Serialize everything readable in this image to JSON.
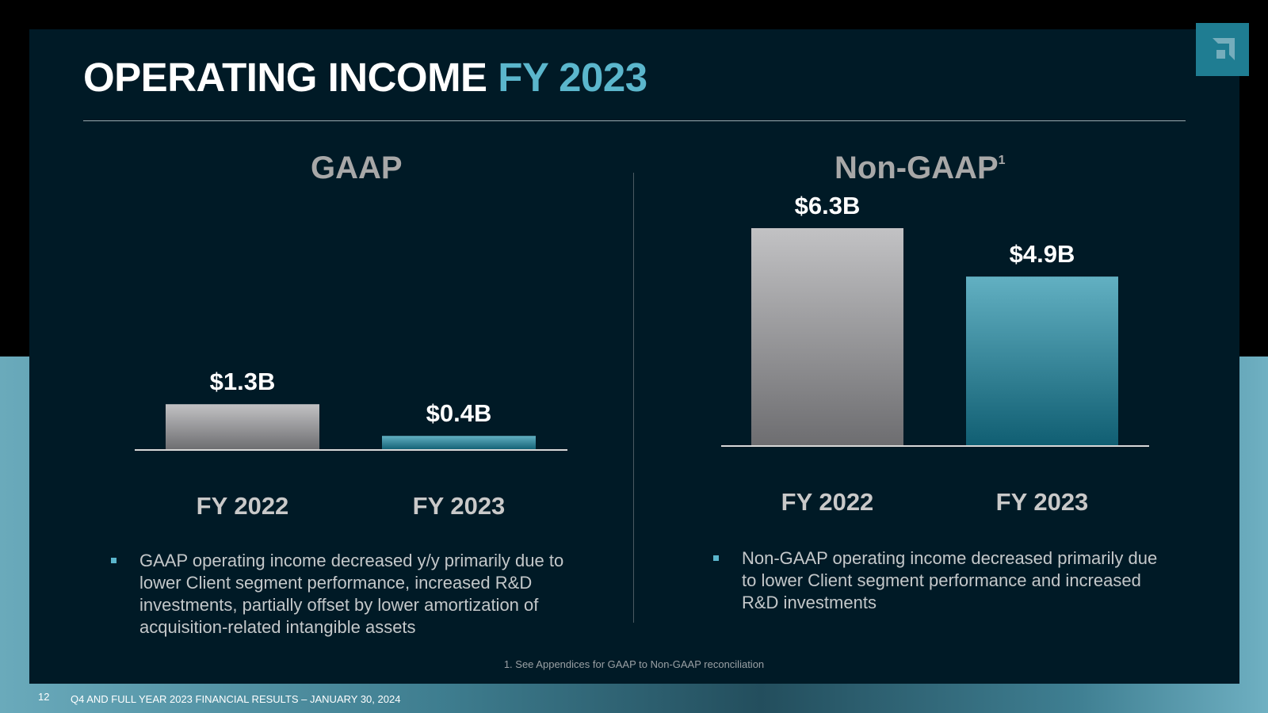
{
  "title": {
    "main": "OPERATING INCOME",
    "accent": "FY 2023"
  },
  "panels": [
    {
      "title": "GAAP",
      "bullet": "GAAP operating income decreased y/y primarily due to lower Client segment performance, increased R&D investments, partially offset by lower amortization of acquisition-related intangible assets"
    },
    {
      "title": "Non-GAAP",
      "superscript": "1",
      "bullet": "Non-GAAP operating income decreased primarily due to lower Client segment performance and increased R&D investments"
    }
  ],
  "chart_data": [
    {
      "type": "bar",
      "title": "GAAP",
      "categories": [
        "FY 2022",
        "FY 2023"
      ],
      "values": [
        1.3,
        0.4
      ],
      "labels": [
        "$1.3B",
        "$0.4B"
      ],
      "unit": "$B",
      "ylim": [
        0,
        6.3
      ],
      "grid": false
    },
    {
      "type": "bar",
      "title": "Non-GAAP",
      "categories": [
        "FY 2022",
        "FY 2023"
      ],
      "values": [
        6.3,
        4.9
      ],
      "labels": [
        "$6.3B",
        "$4.9B"
      ],
      "unit": "$B",
      "ylim": [
        0,
        6.3
      ],
      "grid": false
    }
  ],
  "colors": {
    "background": "#001a26",
    "accent": "#5bb6cc",
    "prior_year_bar": "#9a9a9c",
    "current_year_bar": "#2f8ea3"
  },
  "footnote": "1. See Appendices for GAAP to Non-GAAP reconciliation",
  "footer": {
    "page_number": "12",
    "text": "Q4 AND FULL YEAR 2023 FINANCIAL RESULTS – JANUARY 30, 2024"
  },
  "logo": {
    "icon": "amd-logo-icon"
  }
}
